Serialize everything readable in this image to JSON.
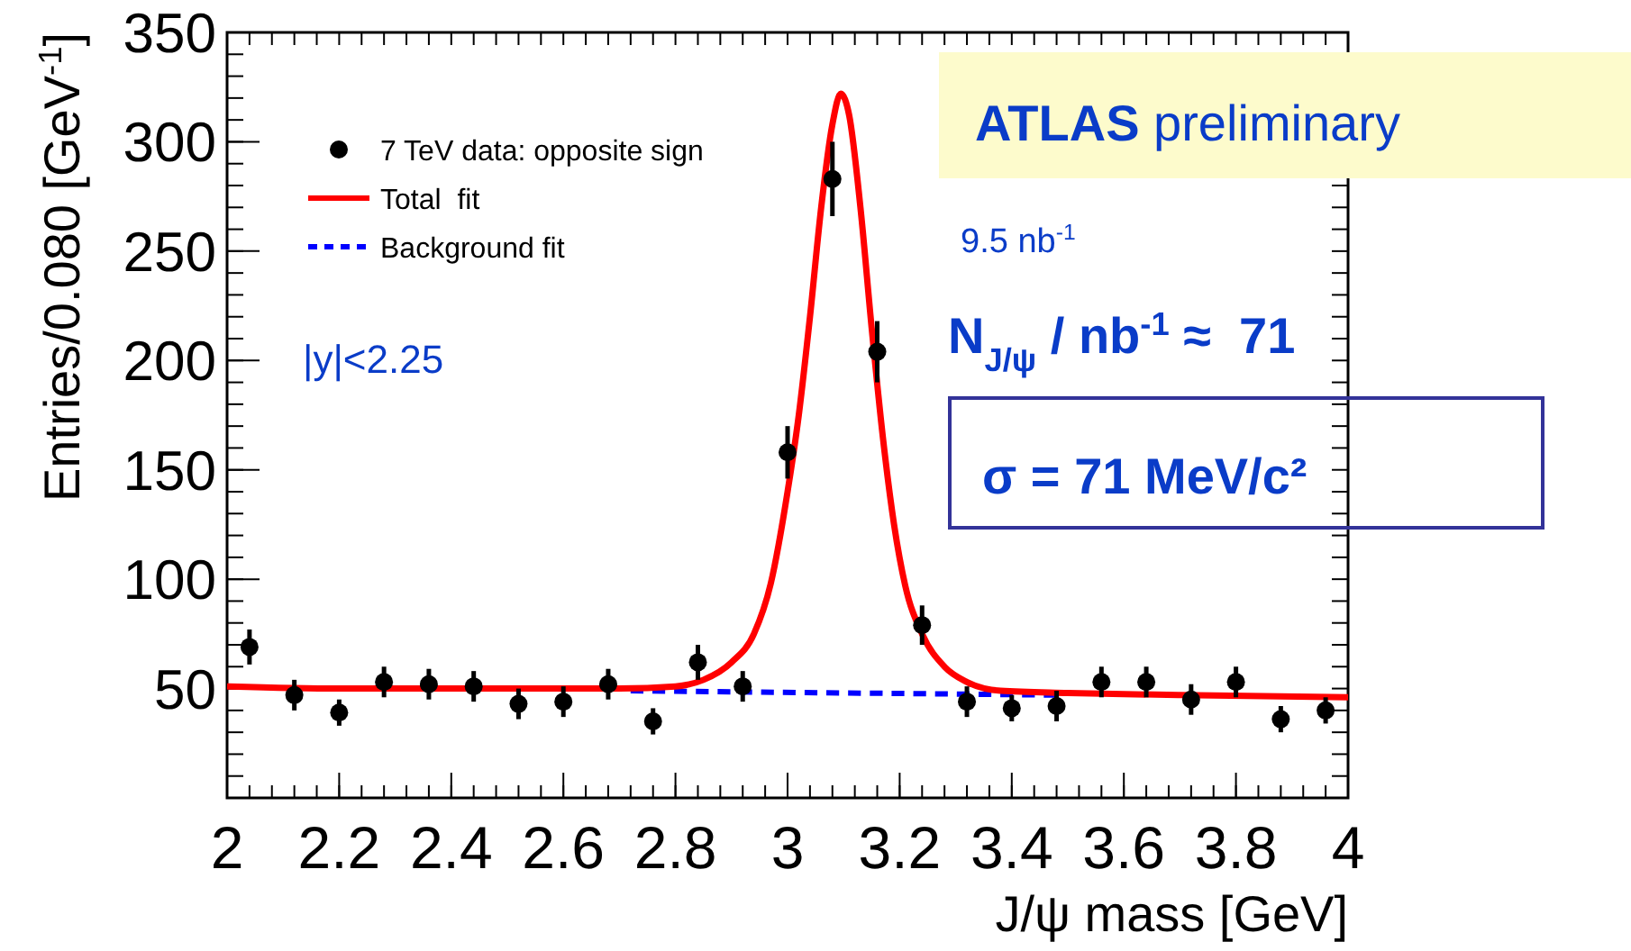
{
  "chart_data": {
    "type": "scatter",
    "xlabel": "J/ψ mass [GeV]",
    "ylabel": "Entries/0.080 [GeV$^{-1}$]",
    "xlim": [
      2,
      4
    ],
    "xticks": [
      2,
      2.2,
      2.4,
      2.6,
      2.8,
      3,
      3.2,
      3.4,
      3.6,
      3.8,
      4
    ],
    "ylim": [
      0,
      350
    ],
    "yticks": [
      50,
      100,
      150,
      200,
      250,
      300,
      350
    ],
    "grid": false,
    "legend": "top left",
    "series": [
      {
        "name": "7 TeV data: opposite sign",
        "marker": "circle",
        "color": "#000000",
        "x": [
          2.04,
          2.12,
          2.2,
          2.28,
          2.36,
          2.44,
          2.52,
          2.6,
          2.68,
          2.76,
          2.84,
          2.92,
          3.0,
          3.08,
          3.16,
          3.24,
          3.32,
          3.4,
          3.48,
          3.56,
          3.64,
          3.72,
          3.8,
          3.88,
          3.96
        ],
        "values": [
          69,
          47,
          39,
          53,
          52,
          51,
          43,
          44,
          52,
          35,
          62,
          51,
          158,
          283,
          204,
          79,
          44,
          41,
          42,
          53,
          53,
          45,
          53,
          36,
          40
        ],
        "errors": [
          8,
          7,
          6,
          7,
          7,
          7,
          7,
          7,
          7,
          6,
          8,
          7,
          12,
          17,
          14,
          9,
          7,
          6,
          7,
          7,
          7,
          7,
          7,
          6,
          6
        ]
      },
      {
        "name": "Total  fit",
        "type": "line",
        "line_style": "solid",
        "color": "#ff0000",
        "x": [
          2.0,
          2.2,
          2.4,
          2.6,
          2.7,
          2.8,
          2.85,
          2.9,
          2.94,
          2.97,
          3.0,
          3.02,
          3.04,
          3.06,
          3.08,
          3.095,
          3.11,
          3.13,
          3.15,
          3.17,
          3.19,
          3.21,
          3.24,
          3.28,
          3.32,
          3.38,
          3.5,
          3.7,
          4.0
        ],
        "values": [
          51,
          50,
          50,
          50,
          50,
          51,
          54,
          62,
          75,
          98,
          140,
          175,
          220,
          270,
          308,
          322,
          312,
          270,
          215,
          165,
          125,
          97,
          75,
          60,
          53,
          49,
          48,
          47,
          46
        ]
      },
      {
        "name": "Background fit",
        "type": "line",
        "line_style": "dashed",
        "color": "#0000ff",
        "x": [
          2.72,
          3.48
        ],
        "values": [
          49,
          47
        ]
      }
    ],
    "annotations": [
      "|y|<2.25",
      "ATLAS preliminary",
      "9.5 nb$^{-1}$",
      "N$_{J/ψ}$ / nb$^{-1}$ ≈  71",
      "σ = 71 MeV/c²"
    ]
  }
}
